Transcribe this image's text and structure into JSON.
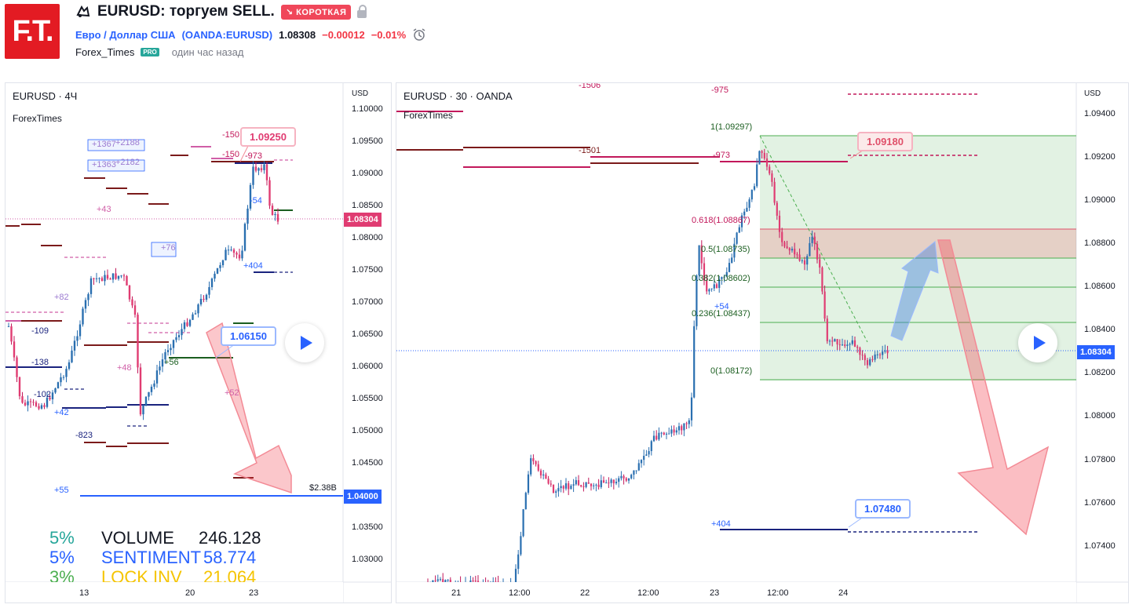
{
  "header": {
    "logo_text": "F.T.",
    "title": "EURUSD: торгуем SELL.",
    "direction_badge": "↘ КОРОТКАЯ",
    "pair_name": "Евро / Доллар США",
    "symbol": "(OANDA:EURUSD)",
    "price": "1.08308",
    "change": "−0.00012",
    "change_pct": "−0.01%",
    "author": "Forex_Times",
    "pro_badge": "PRO",
    "published": "один час назад"
  },
  "colors": {
    "brand": "#e31b23",
    "up": "#26a69a",
    "down": "#f23645",
    "accent": "#2962ff"
  },
  "chart_left": {
    "title": "EURUSD · 4Ч",
    "watermark": "ForexTimes",
    "currency": "USD",
    "price_ticks": [
      "1.10000",
      "1.09500",
      "1.09000",
      "1.08500",
      "1.08000",
      "1.07500",
      "1.07000",
      "1.06500",
      "1.06000",
      "1.05500",
      "1.05000",
      "1.04500",
      "1.04000",
      "1.03500",
      "1.03000"
    ],
    "last_price": "1.08304",
    "level_price": "1.04000",
    "level_label": "$2.38B",
    "callout_top": "1.09250",
    "callout_bottom": "1.06150",
    "x_ticks": [
      "13",
      "20",
      "23"
    ],
    "annotations": [
      "+1367",
      "+2188",
      "+1363",
      "+2182",
      "-150",
      "-150",
      "-973",
      "+43",
      "+76",
      "-54",
      "+404",
      "+82",
      "-109",
      "-138",
      "+48",
      "+56",
      "+52",
      "-102",
      "+42",
      "-823",
      "+55"
    ],
    "stats": [
      {
        "pct": "5%",
        "label": "VOLUME",
        "value": "246.128",
        "color": "#26a69a",
        "label_color": "#131722"
      },
      {
        "pct": "5%",
        "label": "SENTIMENT",
        "value": "58.774",
        "color": "#2962ff",
        "label_color": "#2962ff"
      },
      {
        "pct": "3%",
        "label": "LOCK INV",
        "value": "21.064",
        "color": "#4caf50",
        "label_color": "#f5c400"
      }
    ]
  },
  "chart_right": {
    "title": "EURUSD · 30 · OANDA",
    "watermark": "ForexTimes",
    "currency": "USD",
    "price_ticks": [
      "1.09400",
      "1.09200",
      "1.09000",
      "1.08800",
      "1.08600",
      "1.08400",
      "1.08200",
      "1.08000",
      "1.07800",
      "1.07600",
      "1.07400"
    ],
    "last_price": "1.08304",
    "callout_top": "1.09180",
    "callout_bottom": "1.07480",
    "fib_levels": [
      "1(1.09297)",
      "0.618(1.08867)",
      "0.5(1.08735)",
      "0.382(1.08602)",
      "0.236(1.08437)",
      "0(1.08172)"
    ],
    "x_ticks": [
      "21",
      "12:00",
      "22",
      "12:00",
      "23",
      "12:00",
      "24"
    ],
    "annotations": [
      "-1506",
      "-975",
      "-1501",
      "-973",
      "+54",
      "+404"
    ]
  }
}
